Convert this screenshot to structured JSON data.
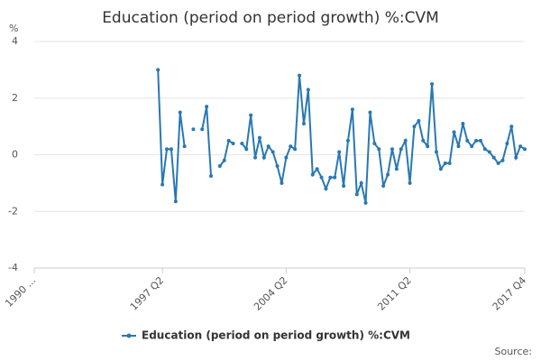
{
  "chart_data": {
    "type": "line",
    "title": "Education (period on period growth) %:CVM",
    "y_label": "%",
    "source": "Source:",
    "categories": [
      "1990 ...",
      null,
      null,
      null,
      null,
      null,
      null,
      null,
      null,
      null,
      null,
      null,
      null,
      null,
      null,
      null,
      null,
      null,
      null,
      null,
      null,
      null,
      null,
      null,
      null,
      null,
      null,
      null,
      null,
      "1997 Q2",
      null,
      null,
      null,
      null,
      null,
      null,
      null,
      null,
      null,
      null,
      null,
      null,
      null,
      null,
      null,
      null,
      null,
      null,
      null,
      null,
      null,
      null,
      null,
      null,
      null,
      null,
      null,
      "2004 Q2",
      null,
      null,
      null,
      null,
      null,
      null,
      null,
      null,
      null,
      null,
      null,
      null,
      null,
      null,
      null,
      null,
      null,
      null,
      null,
      null,
      null,
      null,
      null,
      null,
      null,
      null,
      null,
      "2011 Q2",
      null,
      null,
      null,
      null,
      null,
      null,
      null,
      null,
      null,
      null,
      null,
      null,
      null,
      null,
      null,
      null,
      null,
      null,
      null,
      null,
      null,
      null,
      null,
      null,
      null,
      "2017 Q4"
    ],
    "series": [
      {
        "name": "Education (period on period growth) %:CVM",
        "color": "#2878b4",
        "values": [
          null,
          null,
          null,
          null,
          null,
          null,
          null,
          null,
          null,
          null,
          null,
          null,
          null,
          null,
          null,
          null,
          null,
          null,
          null,
          null,
          null,
          null,
          null,
          null,
          null,
          null,
          null,
          null,
          3.0,
          -1.05,
          0.2,
          0.2,
          -1.65,
          1.5,
          0.3,
          null,
          0.9,
          null,
          0.9,
          1.7,
          -0.75,
          null,
          -0.4,
          -0.2,
          0.5,
          0.4,
          null,
          0.4,
          0.2,
          1.4,
          -0.1,
          0.6,
          -0.1,
          0.3,
          0.1,
          -0.4,
          -1.0,
          -0.1,
          0.3,
          0.2,
          2.8,
          1.1,
          2.3,
          -0.7,
          -0.5,
          -0.8,
          -1.2,
          -0.8,
          -0.8,
          0.1,
          -1.1,
          0.5,
          1.6,
          -1.4,
          -1.0,
          -1.7,
          1.5,
          0.4,
          0.2,
          -1.1,
          -0.7,
          0.2,
          -0.5,
          0.2,
          0.5,
          -1.0,
          1.0,
          1.2,
          0.5,
          0.3,
          2.5,
          0.1,
          -0.5,
          -0.3,
          -0.3,
          0.8,
          0.3,
          1.1,
          0.5,
          0.3,
          0.5,
          0.5,
          0.2,
          0.1,
          -0.1,
          -0.3,
          -0.2,
          0.4,
          1.0,
          -0.1,
          0.3,
          0.2
        ]
      }
    ],
    "ylim": [
      -4,
      4
    ],
    "yticks": [
      -4,
      -2,
      0,
      2,
      4
    ],
    "grid": true
  }
}
